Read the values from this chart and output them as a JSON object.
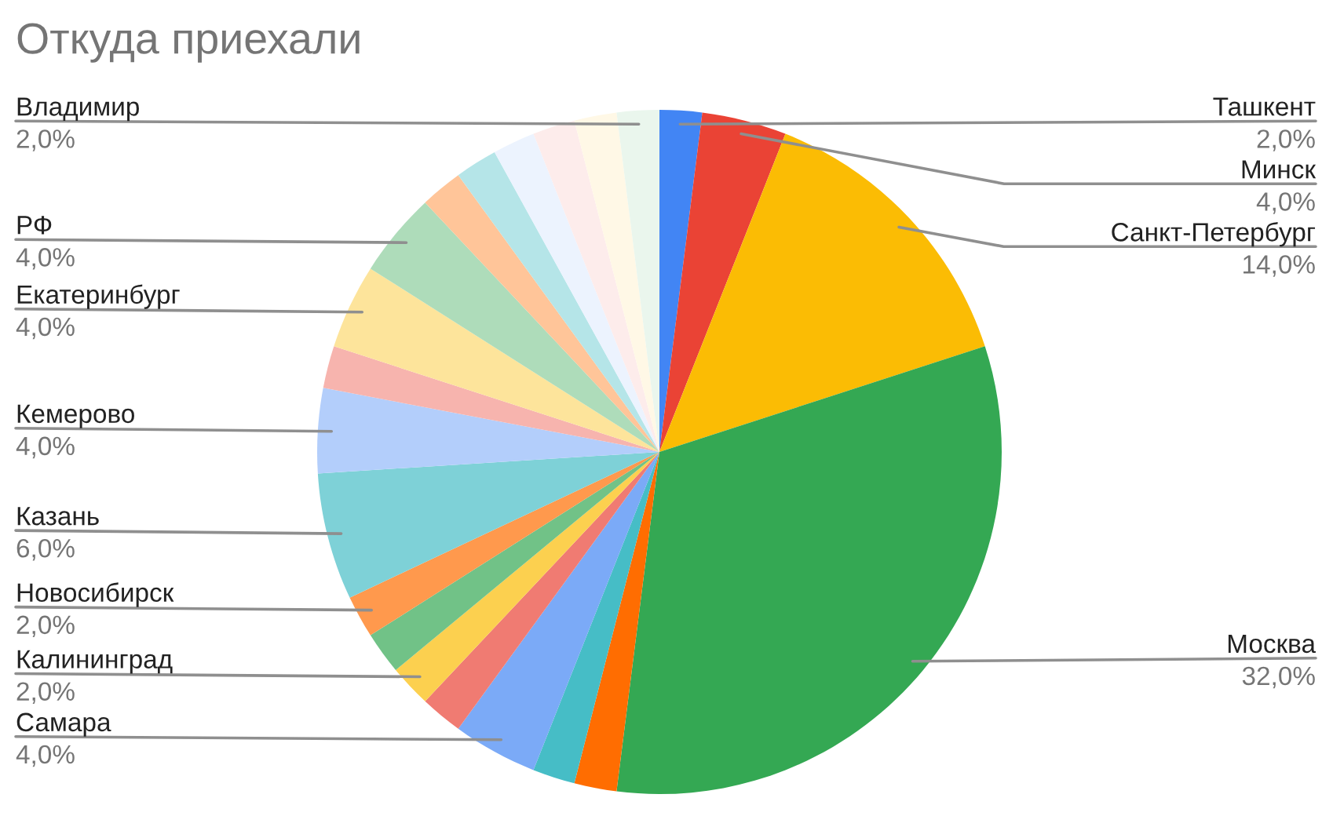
{
  "chart_data": {
    "type": "pie",
    "title": "Откуда приехали",
    "categories": [
      "Ташкент",
      "Минск",
      "Санкт-Петербург",
      "Москва",
      null,
      null,
      "Самара",
      null,
      "Калининград",
      null,
      "Новосибирск",
      "Казань",
      "Кемерово",
      null,
      "Екатеринбург",
      "РФ",
      null,
      null,
      null,
      null,
      null,
      "Владимир"
    ],
    "values": [
      2,
      4,
      14,
      32,
      2,
      2,
      4,
      2,
      2,
      2,
      2,
      6,
      4,
      2,
      4,
      4,
      2,
      2,
      2,
      2,
      2,
      2
    ],
    "colors": [
      "#4285f4",
      "#ea4335",
      "#fbbc04",
      "#34a853",
      "#ff6d01",
      "#46bdc6",
      "#7baaf7",
      "#f07b72",
      "#fcd04f",
      "#71c287",
      "#ff994d",
      "#7ed1d7",
      "#b3cefb",
      "#f7b4ae",
      "#fde49b",
      "#aedcba",
      "#ffc599",
      "#b5e5e8",
      "#ecf3fe",
      "#fdeceb",
      "#fff8e6",
      "#eaf6ed"
    ],
    "value_labels": [
      "2,0%",
      "4,0%",
      "14,0%",
      "32,0%",
      null,
      null,
      "4,0%",
      null,
      "2,0%",
      null,
      "2,0%",
      "6,0%",
      "4,0%",
      null,
      "4,0%",
      "4,0%",
      null,
      null,
      null,
      null,
      null,
      "2,0%"
    ]
  }
}
